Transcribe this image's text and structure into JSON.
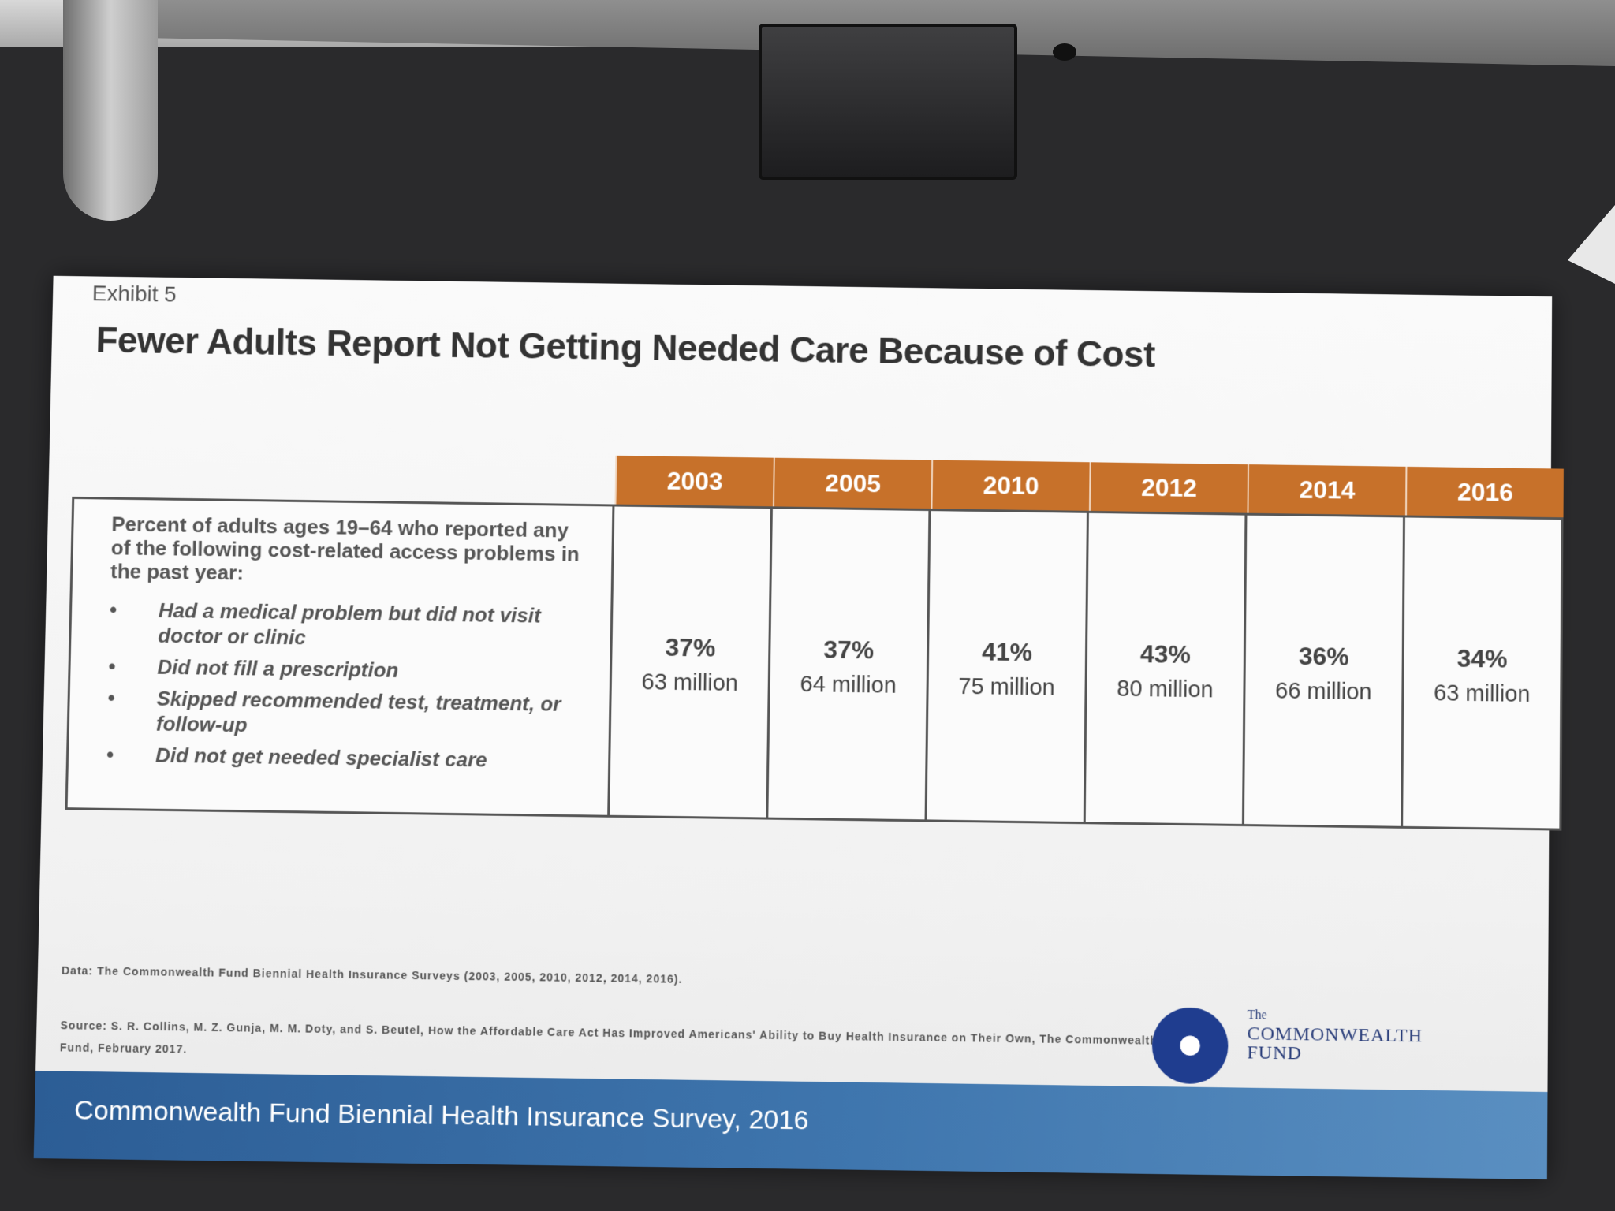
{
  "slide": {
    "exhibit_label": "Exhibit 5",
    "title": "Fewer Adults Report Not Getting Needed Care Because of Cost",
    "table": {
      "description_lead": "Percent of adults ages 19–64 who reported any of the following cost-related access problems in the past year:",
      "problems": [
        "Had a medical problem but did not visit doctor or clinic",
        "Did not fill a prescription",
        "Skipped recommended test, treatment, or follow-up",
        "Did not get needed specialist care"
      ],
      "columns": [
        {
          "year": "2003",
          "percent": "37%",
          "millions": "63 million"
        },
        {
          "year": "2005",
          "percent": "37%",
          "millions": "64 million"
        },
        {
          "year": "2010",
          "percent": "41%",
          "millions": "75 million"
        },
        {
          "year": "2012",
          "percent": "43%",
          "millions": "80 million"
        },
        {
          "year": "2014",
          "percent": "36%",
          "millions": "66 million"
        },
        {
          "year": "2016",
          "percent": "34%",
          "millions": "63 million"
        }
      ]
    },
    "data_note": "Data: The Commonwealth Fund Biennial Health Insurance Surveys (2003, 2005, 2010, 2012, 2014, 2016).",
    "source_note": "Source: S. R. Collins, M. Z. Gunja, M. M. Doty, and S. Beutel, How the Affordable Care Act Has Improved Americans' Ability to Buy Health Insurance on Their Own, The Commonwealth Fund, February 2017.",
    "logo": {
      "the": "The",
      "line1": "COMMONWEALTH",
      "line2": "FUND"
    },
    "footer": "Commonwealth Fund Biennial Health Insurance Survey, 2016"
  },
  "colors": {
    "header_orange": "#c7712a",
    "footer_blue": "#3f76ae",
    "logo_blue": "#1f3d8f"
  }
}
